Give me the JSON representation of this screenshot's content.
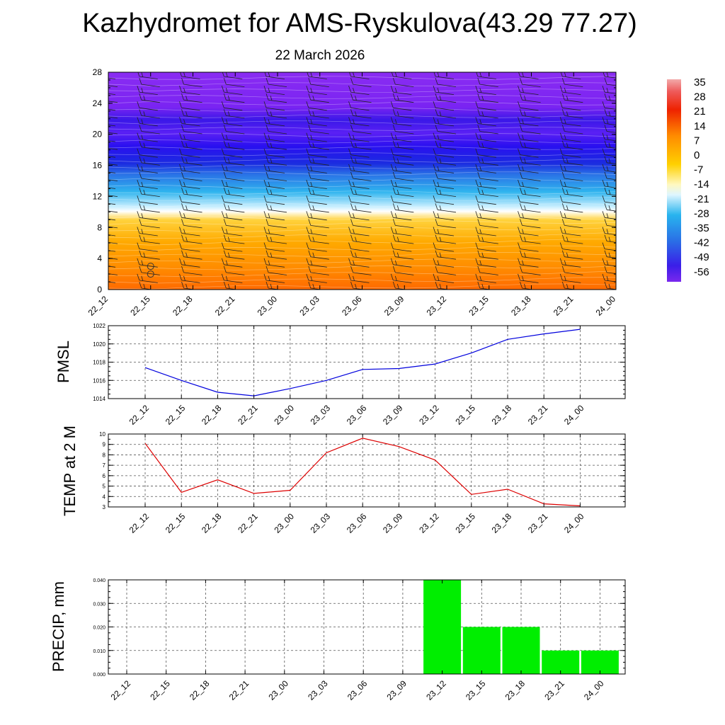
{
  "title": "Kazhydromet for AMS-Ryskulova(43.29 77.27)",
  "subtitle": "22 March 2026",
  "colors": {
    "pmsl_line": "#0000dd",
    "temp_line": "#dd0000",
    "precip_bar": "#00ee00",
    "grid": "#555555"
  },
  "chart_data": [
    {
      "type": "heatmap",
      "name": "vertical cross-section",
      "x_ticks": [
        "22_12",
        "22_15",
        "22_18",
        "22_21",
        "23_00",
        "23_03",
        "23_06",
        "23_09",
        "23_12",
        "23_15",
        "23_18",
        "23_21",
        "24_00"
      ],
      "y_ticks": [
        0,
        4,
        8,
        12,
        16,
        20,
        24,
        28
      ],
      "ylim": [
        0,
        28
      ],
      "colorbar_labels": [
        "35",
        "28",
        "21",
        "14",
        "7",
        "0",
        "-7",
        "-14",
        "-21",
        "-28",
        "-35",
        "-42",
        "-49",
        "-56"
      ],
      "colorbar_range": [
        -63,
        35
      ],
      "markers": [
        {
          "x": "22_15",
          "y": 2
        },
        {
          "x": "22_15",
          "y": 3
        }
      ]
    },
    {
      "type": "line",
      "ylabel": "PMSL",
      "x": [
        "22_12",
        "22_15",
        "22_18",
        "22_21",
        "23_00",
        "23_03",
        "23_06",
        "23_09",
        "23_12",
        "23_15",
        "23_18",
        "23_21",
        "24_00"
      ],
      "values": [
        1017.4,
        1016.0,
        1014.7,
        1014.3,
        1015.1,
        1016.0,
        1017.2,
        1017.3,
        1017.8,
        1019.0,
        1020.5,
        1021.1,
        1021.6
      ],
      "y_ticks": [
        1014,
        1016,
        1018,
        1020,
        1022
      ],
      "ylim": [
        1014,
        1022
      ]
    },
    {
      "type": "line",
      "ylabel": "TEMP at 2 M",
      "x": [
        "22_12",
        "22_15",
        "22_18",
        "22_21",
        "23_00",
        "23_03",
        "23_06",
        "23_09",
        "23_12",
        "23_15",
        "23_18",
        "23_21",
        "24_00"
      ],
      "values": [
        9.1,
        4.4,
        5.6,
        4.3,
        4.6,
        8.2,
        9.6,
        8.8,
        7.5,
        4.2,
        4.7,
        3.3,
        3.1
      ],
      "y_ticks": [
        3,
        4,
        5,
        6,
        7,
        8,
        9,
        10
      ],
      "ylim": [
        3,
        10
      ]
    },
    {
      "type": "bar",
      "ylabel": "PRECIP, mm",
      "categories": [
        "22_12",
        "22_15",
        "22_18",
        "22_21",
        "23_00",
        "23_03",
        "23_06",
        "23_09",
        "23_12",
        "23_15",
        "23_18",
        "23_21",
        "24_00"
      ],
      "values": [
        0,
        0,
        0,
        0,
        0,
        0,
        0,
        0,
        0.04,
        0.02,
        0.02,
        0.01,
        0.01
      ],
      "y_ticks": [
        "0.000",
        "0.010",
        "0.020",
        "0.030",
        "0.040"
      ],
      "ylim": [
        0,
        0.04
      ]
    }
  ]
}
